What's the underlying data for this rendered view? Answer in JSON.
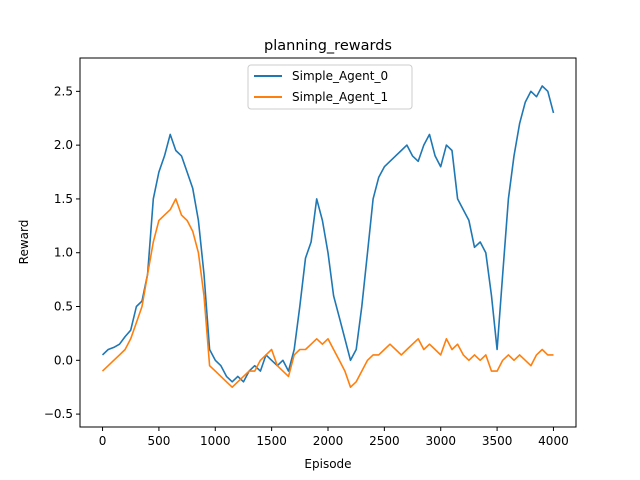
{
  "chart_data": {
    "type": "line",
    "title": "planning_rewards",
    "xlabel": "Episode",
    "ylabel": "Reward",
    "xlim": [
      -200,
      4200
    ],
    "ylim": [
      -0.62,
      2.81
    ],
    "x_ticks": [
      0,
      500,
      1000,
      1500,
      2000,
      2500,
      3000,
      3500,
      4000
    ],
    "x_tick_labels": [
      "0",
      "500",
      "1000",
      "1500",
      "2000",
      "2500",
      "3000",
      "3500",
      "4000"
    ],
    "y_ticks": [
      -0.5,
      0.0,
      0.5,
      1.0,
      1.5,
      2.0,
      2.5
    ],
    "y_tick_labels": [
      "−0.5",
      "0.0",
      "0.5",
      "1.0",
      "1.5",
      "2.0",
      "2.5"
    ],
    "legend_position": "top-center",
    "grid": false,
    "series": [
      {
        "name": "Simple_Agent_0",
        "color": "#1f77b4",
        "points": [
          [
            0,
            0.05
          ],
          [
            50,
            0.1
          ],
          [
            100,
            0.12
          ],
          [
            150,
            0.15
          ],
          [
            200,
            0.22
          ],
          [
            250,
            0.28
          ],
          [
            300,
            0.5
          ],
          [
            350,
            0.55
          ],
          [
            400,
            0.8
          ],
          [
            450,
            1.5
          ],
          [
            500,
            1.75
          ],
          [
            550,
            1.9
          ],
          [
            600,
            2.1
          ],
          [
            650,
            1.95
          ],
          [
            700,
            1.9
          ],
          [
            750,
            1.75
          ],
          [
            800,
            1.6
          ],
          [
            850,
            1.3
          ],
          [
            900,
            0.8
          ],
          [
            950,
            0.1
          ],
          [
            1000,
            0.0
          ],
          [
            1050,
            -0.05
          ],
          [
            1100,
            -0.15
          ],
          [
            1150,
            -0.2
          ],
          [
            1200,
            -0.15
          ],
          [
            1250,
            -0.2
          ],
          [
            1300,
            -0.1
          ],
          [
            1350,
            -0.05
          ],
          [
            1400,
            -0.1
          ],
          [
            1450,
            0.05
          ],
          [
            1500,
            0.0
          ],
          [
            1550,
            -0.05
          ],
          [
            1600,
            0.0
          ],
          [
            1650,
            -0.1
          ],
          [
            1700,
            0.1
          ],
          [
            1750,
            0.5
          ],
          [
            1800,
            0.95
          ],
          [
            1850,
            1.1
          ],
          [
            1900,
            1.5
          ],
          [
            1950,
            1.3
          ],
          [
            2000,
            1.0
          ],
          [
            2050,
            0.6
          ],
          [
            2100,
            0.4
          ],
          [
            2150,
            0.2
          ],
          [
            2200,
            0.0
          ],
          [
            2250,
            0.1
          ],
          [
            2300,
            0.5
          ],
          [
            2350,
            1.0
          ],
          [
            2400,
            1.5
          ],
          [
            2450,
            1.7
          ],
          [
            2500,
            1.8
          ],
          [
            2550,
            1.85
          ],
          [
            2600,
            1.9
          ],
          [
            2650,
            1.95
          ],
          [
            2700,
            2.0
          ],
          [
            2750,
            1.9
          ],
          [
            2800,
            1.85
          ],
          [
            2850,
            2.0
          ],
          [
            2900,
            2.1
          ],
          [
            2950,
            1.9
          ],
          [
            3000,
            1.8
          ],
          [
            3050,
            2.0
          ],
          [
            3100,
            1.95
          ],
          [
            3150,
            1.5
          ],
          [
            3200,
            1.4
          ],
          [
            3250,
            1.3
          ],
          [
            3300,
            1.05
          ],
          [
            3350,
            1.1
          ],
          [
            3400,
            1.0
          ],
          [
            3450,
            0.6
          ],
          [
            3500,
            0.1
          ],
          [
            3550,
            0.8
          ],
          [
            3600,
            1.5
          ],
          [
            3650,
            1.9
          ],
          [
            3700,
            2.2
          ],
          [
            3750,
            2.4
          ],
          [
            3800,
            2.5
          ],
          [
            3850,
            2.45
          ],
          [
            3900,
            2.55
          ],
          [
            3950,
            2.5
          ],
          [
            4000,
            2.3
          ]
        ]
      },
      {
        "name": "Simple_Agent_1",
        "color": "#ff7f0e",
        "points": [
          [
            0,
            -0.1
          ],
          [
            50,
            -0.05
          ],
          [
            100,
            0.0
          ],
          [
            150,
            0.05
          ],
          [
            200,
            0.1
          ],
          [
            250,
            0.2
          ],
          [
            300,
            0.35
          ],
          [
            350,
            0.5
          ],
          [
            400,
            0.8
          ],
          [
            450,
            1.1
          ],
          [
            500,
            1.3
          ],
          [
            550,
            1.35
          ],
          [
            600,
            1.4
          ],
          [
            650,
            1.5
          ],
          [
            700,
            1.35
          ],
          [
            750,
            1.3
          ],
          [
            800,
            1.2
          ],
          [
            850,
            1.0
          ],
          [
            900,
            0.6
          ],
          [
            950,
            -0.05
          ],
          [
            1000,
            -0.1
          ],
          [
            1050,
            -0.15
          ],
          [
            1100,
            -0.2
          ],
          [
            1150,
            -0.25
          ],
          [
            1200,
            -0.2
          ],
          [
            1250,
            -0.15
          ],
          [
            1300,
            -0.1
          ],
          [
            1350,
            -0.1
          ],
          [
            1400,
            0.0
          ],
          [
            1450,
            0.05
          ],
          [
            1500,
            0.1
          ],
          [
            1550,
            -0.05
          ],
          [
            1600,
            -0.1
          ],
          [
            1650,
            -0.15
          ],
          [
            1700,
            0.05
          ],
          [
            1750,
            0.1
          ],
          [
            1800,
            0.1
          ],
          [
            1850,
            0.15
          ],
          [
            1900,
            0.2
          ],
          [
            1950,
            0.15
          ],
          [
            2000,
            0.2
          ],
          [
            2050,
            0.1
          ],
          [
            2100,
            0.0
          ],
          [
            2150,
            -0.1
          ],
          [
            2200,
            -0.25
          ],
          [
            2250,
            -0.2
          ],
          [
            2300,
            -0.1
          ],
          [
            2350,
            0.0
          ],
          [
            2400,
            0.05
          ],
          [
            2450,
            0.05
          ],
          [
            2500,
            0.1
          ],
          [
            2550,
            0.15
          ],
          [
            2600,
            0.1
          ],
          [
            2650,
            0.05
          ],
          [
            2700,
            0.1
          ],
          [
            2750,
            0.15
          ],
          [
            2800,
            0.2
          ],
          [
            2850,
            0.1
          ],
          [
            2900,
            0.15
          ],
          [
            2950,
            0.1
          ],
          [
            3000,
            0.05
          ],
          [
            3050,
            0.2
          ],
          [
            3100,
            0.1
          ],
          [
            3150,
            0.15
          ],
          [
            3200,
            0.05
          ],
          [
            3250,
            0.0
          ],
          [
            3300,
            0.05
          ],
          [
            3350,
            0.0
          ],
          [
            3400,
            0.05
          ],
          [
            3450,
            -0.1
          ],
          [
            3500,
            -0.1
          ],
          [
            3550,
            0.0
          ],
          [
            3600,
            0.05
          ],
          [
            3650,
            0.0
          ],
          [
            3700,
            0.05
          ],
          [
            3750,
            0.0
          ],
          [
            3800,
            -0.05
          ],
          [
            3850,
            0.05
          ],
          [
            3900,
            0.1
          ],
          [
            3950,
            0.05
          ],
          [
            4000,
            0.05
          ]
        ]
      }
    ]
  }
}
